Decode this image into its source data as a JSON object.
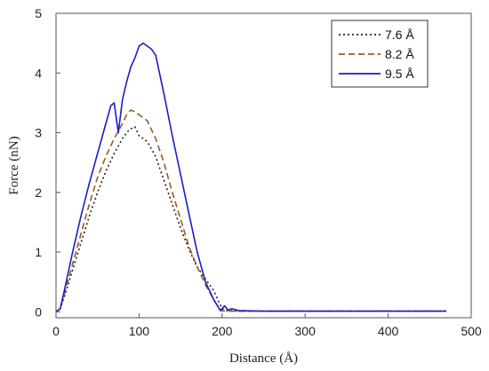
{
  "chart_data": {
    "type": "line",
    "xlabel": "Distance (Å)",
    "ylabel": "Force (nN)",
    "xlim": [
      0,
      500
    ],
    "ylim": [
      -0.1,
      5
    ],
    "xticks": [
      0,
      100,
      200,
      300,
      400,
      500
    ],
    "yticks": [
      0,
      1,
      2,
      3,
      4,
      5
    ],
    "grid": false,
    "legend_position": "top-right",
    "series": [
      {
        "name": "7.6 Å",
        "color": "#222222",
        "style": "dotted",
        "x": [
          0,
          5,
          10,
          20,
          30,
          40,
          50,
          60,
          70,
          80,
          88,
          95,
          100,
          105,
          110,
          120,
          130,
          140,
          150,
          160,
          170,
          180,
          190,
          195,
          200,
          205,
          210,
          220,
          250,
          300,
          350,
          400,
          450,
          470
        ],
        "y": [
          0,
          0.05,
          0.25,
          0.7,
          1.15,
          1.6,
          2.0,
          2.35,
          2.65,
          2.9,
          3.05,
          3.1,
          2.95,
          2.9,
          2.85,
          2.6,
          2.2,
          1.8,
          1.4,
          1.05,
          0.75,
          0.55,
          0.35,
          0.2,
          0.05,
          0.02,
          0.02,
          0.01,
          0.01,
          0.01,
          0.01,
          0.01,
          0.01,
          0.01
        ]
      },
      {
        "name": "8.2 Å",
        "color": "#9b5a1a",
        "style": "dashed",
        "x": [
          0,
          5,
          10,
          20,
          30,
          40,
          50,
          60,
          70,
          80,
          85,
          90,
          95,
          100,
          105,
          110,
          120,
          130,
          140,
          150,
          160,
          170,
          180,
          190,
          198,
          205,
          210,
          220,
          250,
          300,
          350,
          400,
          450,
          470
        ],
        "y": [
          0,
          0.05,
          0.3,
          0.8,
          1.3,
          1.8,
          2.25,
          2.6,
          2.9,
          3.15,
          3.3,
          3.38,
          3.35,
          3.3,
          3.25,
          3.2,
          2.9,
          2.5,
          2.0,
          1.55,
          1.1,
          0.75,
          0.45,
          0.2,
          0.02,
          0.01,
          0.01,
          0.01,
          0.01,
          0.01,
          0.01,
          0.01,
          0.01,
          0.01
        ]
      },
      {
        "name": "9.5 Å",
        "color": "#1c1ccc",
        "style": "solid",
        "x": [
          0,
          5,
          10,
          20,
          30,
          40,
          50,
          60,
          66,
          70,
          75,
          80,
          85,
          90,
          95,
          100,
          105,
          110,
          115,
          120,
          130,
          140,
          150,
          160,
          170,
          180,
          190,
          198,
          203,
          207,
          212,
          220,
          250,
          300,
          350,
          400,
          450,
          470
        ],
        "y": [
          0,
          0.05,
          0.35,
          1.0,
          1.6,
          2.15,
          2.65,
          3.15,
          3.45,
          3.5,
          3.0,
          3.55,
          3.85,
          4.1,
          4.25,
          4.45,
          4.5,
          4.45,
          4.4,
          4.3,
          3.65,
          2.95,
          2.3,
          1.65,
          1.0,
          0.5,
          0.2,
          0.02,
          0.1,
          0.03,
          0.05,
          0.02,
          0.01,
          0.01,
          0.01,
          0.01,
          0.01,
          0.01
        ]
      }
    ]
  }
}
